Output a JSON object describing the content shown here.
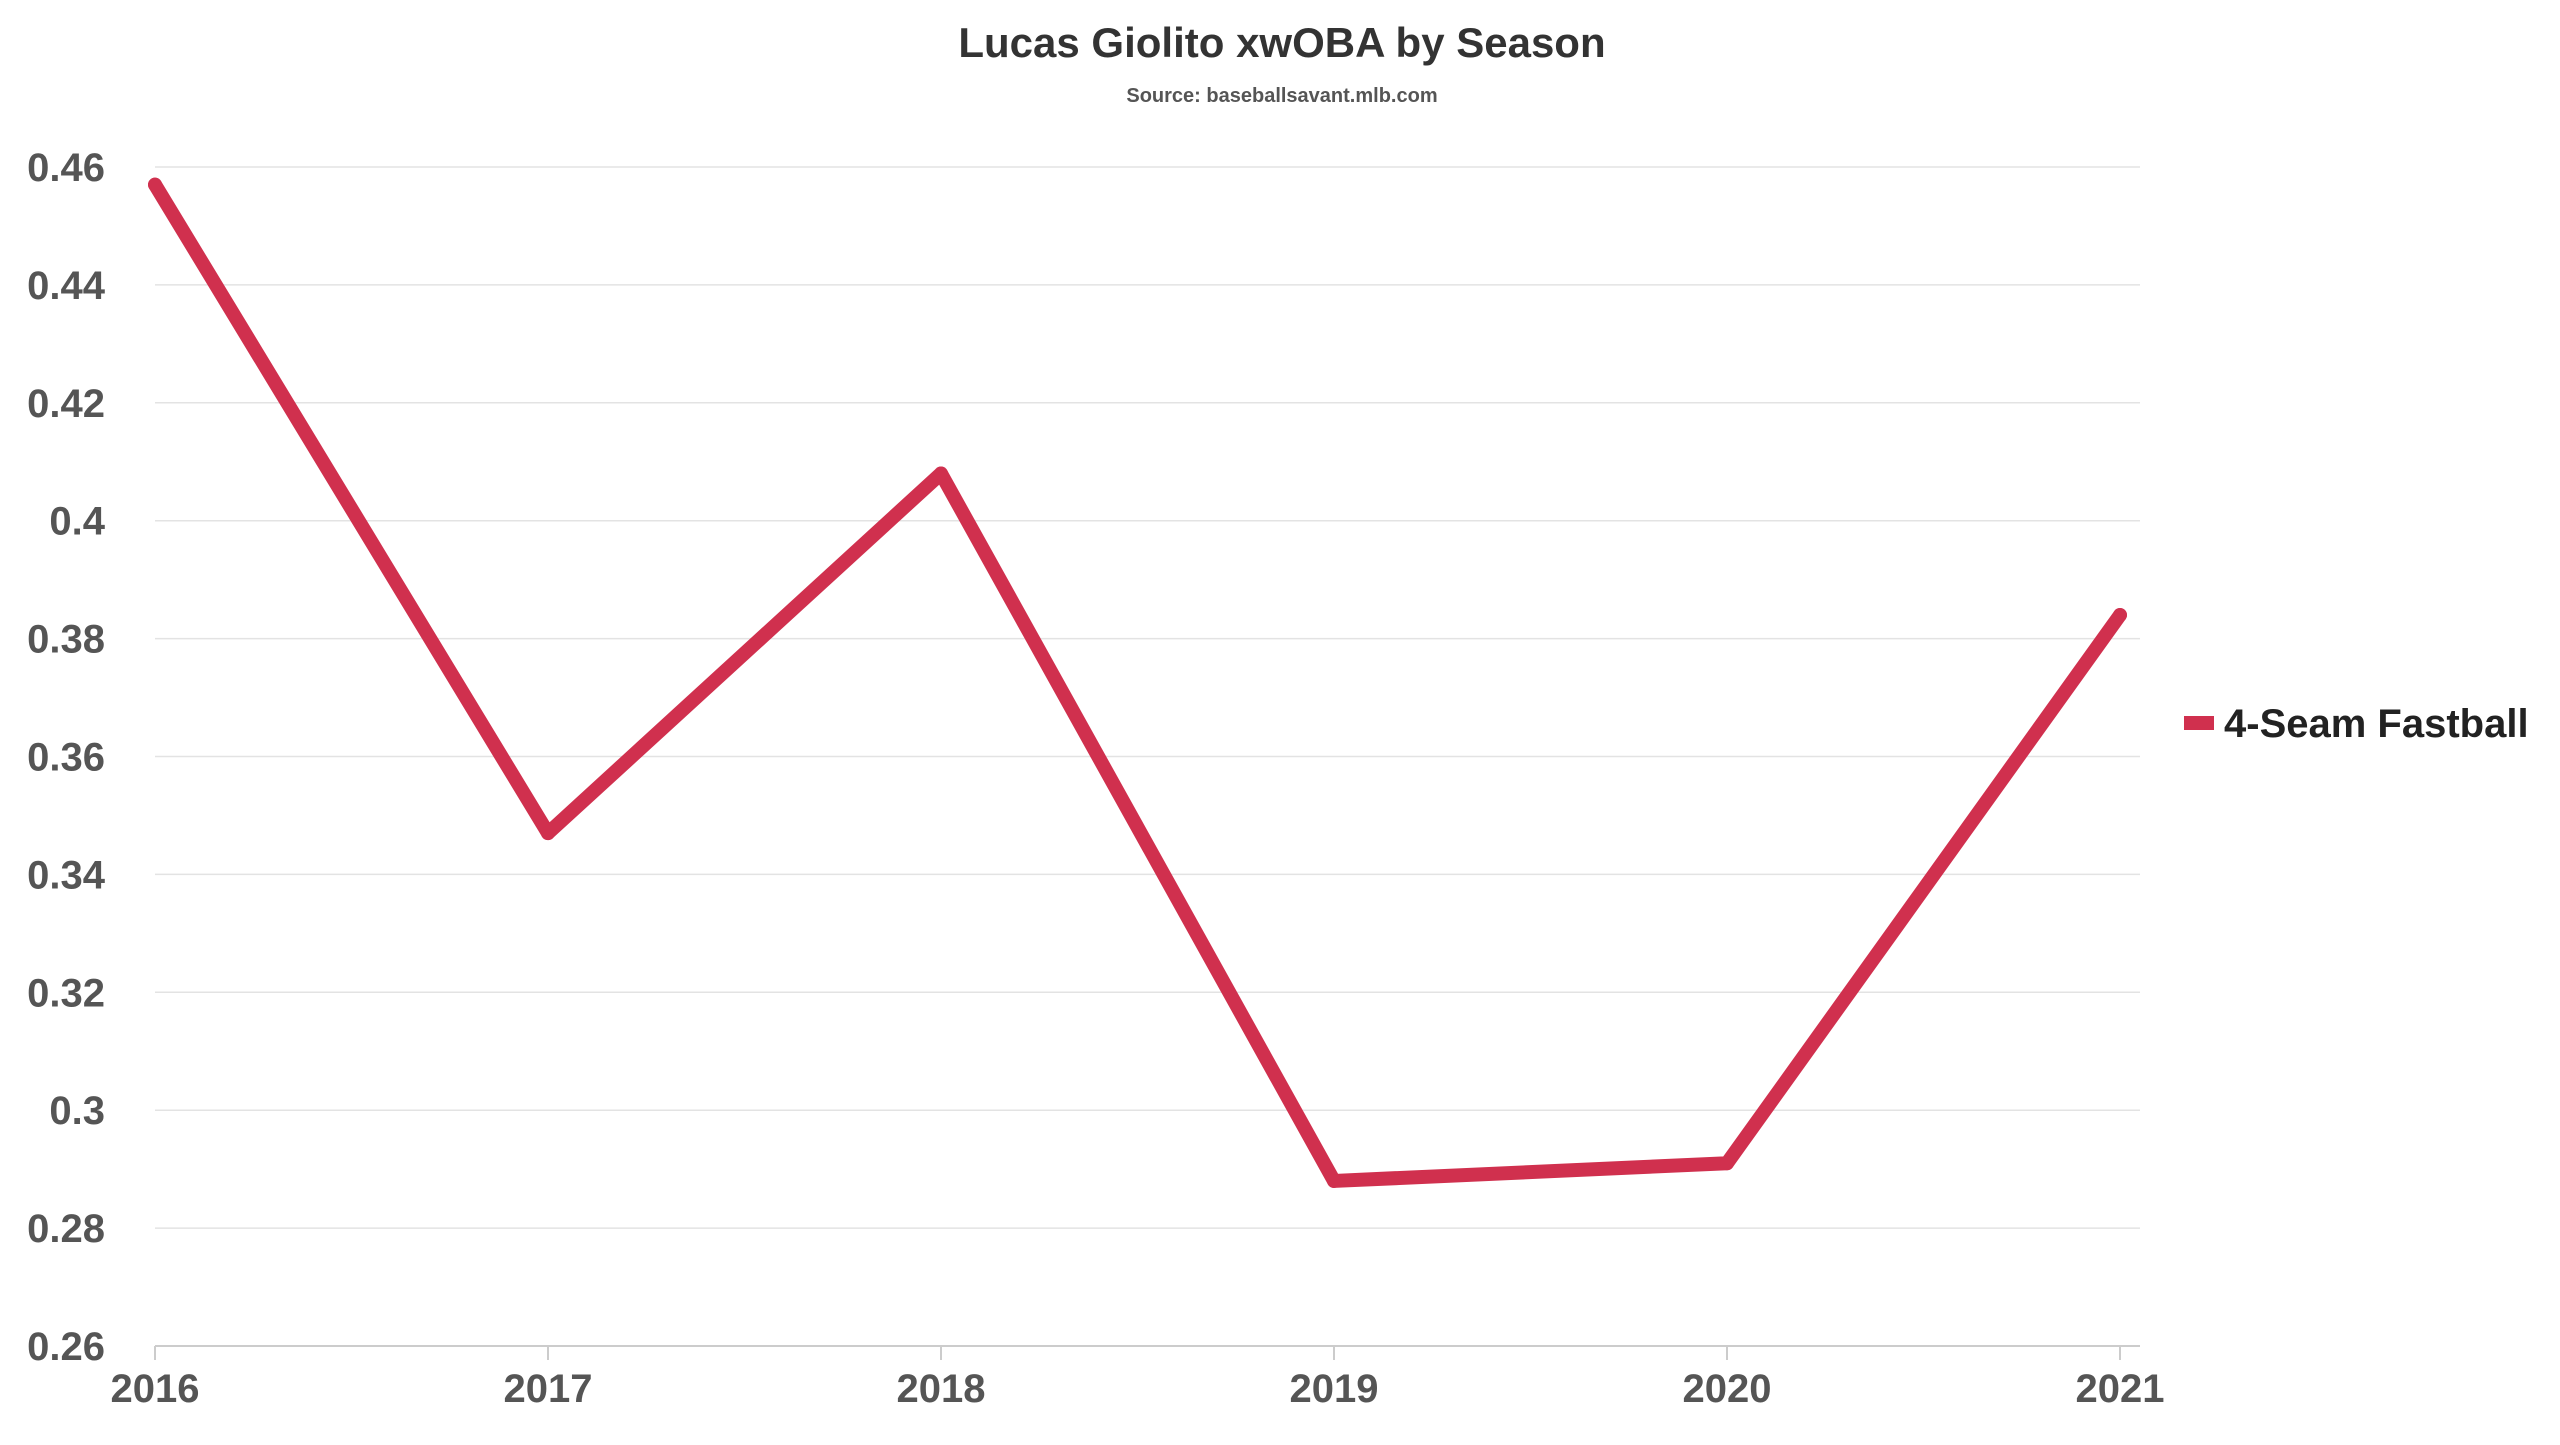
{
  "chart_data": {
    "type": "line",
    "title": "Lucas Giolito xwOBA by Season",
    "subtitle": "Source: baseballsavant.mlb.com",
    "xlabel": "",
    "ylabel": "",
    "categories": [
      "2016",
      "2017",
      "2018",
      "2019",
      "2020",
      "2021"
    ],
    "series": [
      {
        "name": "4-Seam Fastball",
        "color": "#d0304e",
        "values": [
          0.457,
          0.347,
          0.408,
          0.288,
          0.291,
          0.384
        ]
      }
    ],
    "ylim": [
      0.26,
      0.46
    ],
    "yticks": [
      "0.26",
      "0.28",
      "0.3",
      "0.32",
      "0.34",
      "0.36",
      "0.38",
      "0.4",
      "0.42",
      "0.44",
      "0.46"
    ],
    "grid": true,
    "legend_position": "right"
  }
}
